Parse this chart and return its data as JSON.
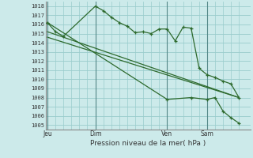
{
  "background_color": "#cceaea",
  "grid_color": "#99cccc",
  "line_color": "#2d6a2d",
  "title": "Pression niveau de la mer( hPa )",
  "ylim": [
    1004.5,
    1018.5
  ],
  "yticks": [
    1005,
    1006,
    1007,
    1008,
    1009,
    1010,
    1011,
    1012,
    1013,
    1014,
    1015,
    1016,
    1017,
    1018
  ],
  "x_tick_labels": [
    "Jeu",
    "Dim",
    "Ven",
    "Sam"
  ],
  "x_tick_positions": [
    0.0,
    0.25,
    0.625,
    0.8333
  ],
  "vline_positions": [
    0.0,
    0.25,
    0.625,
    0.8333
  ],
  "series1_x": [
    0.0,
    0.042,
    0.083,
    0.25,
    0.292,
    0.333,
    0.375,
    0.417,
    0.458,
    0.5,
    0.542,
    0.583,
    0.625,
    0.667,
    0.708,
    0.75,
    0.792,
    0.833,
    0.875,
    0.917,
    0.958,
    1.0
  ],
  "series1_y": [
    1016.2,
    1015.2,
    1014.7,
    1018.0,
    1017.5,
    1016.8,
    1016.2,
    1015.8,
    1015.1,
    1015.2,
    1015.0,
    1015.5,
    1015.5,
    1014.2,
    1015.7,
    1015.6,
    1011.2,
    1010.5,
    1010.2,
    1009.8,
    1009.5,
    1008.0
  ],
  "series2_x": [
    0.0,
    0.625,
    0.75,
    0.833,
    0.875,
    0.917,
    0.958,
    1.0
  ],
  "series2_y": [
    1016.2,
    1007.8,
    1008.0,
    1007.8,
    1008.0,
    1006.5,
    1005.8,
    1005.2
  ],
  "series3_x": [
    0.0,
    1.0
  ],
  "series3_y": [
    1015.2,
    1008.0
  ],
  "series4_x": [
    0.0,
    1.0
  ],
  "series4_y": [
    1014.6,
    1008.0
  ],
  "xlim": [
    -0.01,
    1.06
  ]
}
